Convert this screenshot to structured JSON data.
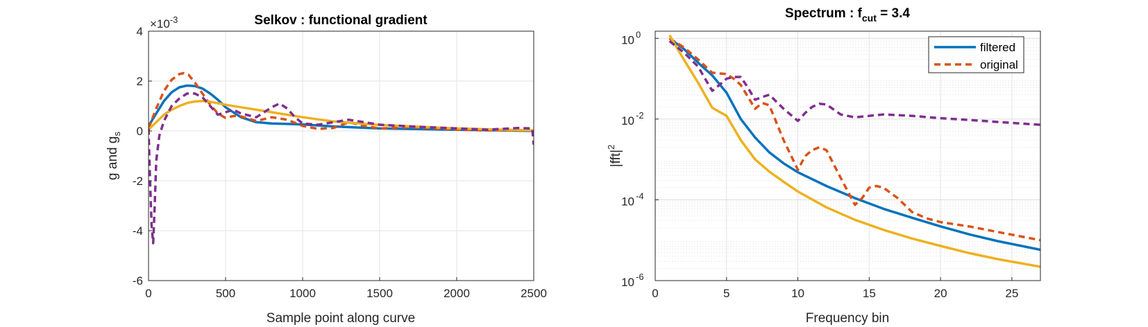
{
  "chart_data": [
    {
      "type": "line",
      "title": "Selkov : functional gradient",
      "xlabel": "Sample point along curve",
      "ylabel": "g and g",
      "ylabel_sub": "s",
      "exponent": {
        "base": "×10",
        "power": "-3"
      },
      "xlim": [
        0,
        2500
      ],
      "ylim": [
        -6,
        4
      ],
      "xticks": [
        0,
        500,
        1000,
        1500,
        2000,
        2500
      ],
      "yticks": [
        -6,
        -4,
        -2,
        0,
        2,
        4
      ],
      "grid": true,
      "series": [
        {
          "color": "#0072BD",
          "dash": "solid",
          "x": [
            0,
            50,
            100,
            150,
            200,
            250,
            300,
            350,
            400,
            450,
            500,
            600,
            700,
            800,
            900,
            1000,
            1200,
            1500,
            2000,
            2500
          ],
          "y": [
            0.2,
            0.7,
            1.2,
            1.55,
            1.75,
            1.82,
            1.8,
            1.7,
            1.5,
            1.25,
            0.95,
            0.55,
            0.35,
            0.3,
            0.28,
            0.26,
            0.18,
            0.1,
            0.05,
            0.0
          ]
        },
        {
          "color": "#D95319",
          "dash": "dashed",
          "x": [
            0,
            50,
            100,
            150,
            200,
            230,
            260,
            300,
            350,
            400,
            450,
            500,
            550,
            600,
            700,
            800,
            900,
            1000,
            1100,
            1200,
            1300,
            1400,
            1500,
            1700,
            2000,
            2200,
            2500
          ],
          "y": [
            0.1,
            0.9,
            1.6,
            2.05,
            2.28,
            2.32,
            2.25,
            1.95,
            1.5,
            1.05,
            0.7,
            0.52,
            0.6,
            0.58,
            0.4,
            0.55,
            0.45,
            0.2,
            0.08,
            0.12,
            0.35,
            0.2,
            0.1,
            0.15,
            0.05,
            0.02,
            0.02
          ]
        },
        {
          "color": "#EDB120",
          "dash": "solid",
          "x": [
            0,
            50,
            100,
            150,
            200,
            250,
            300,
            350,
            400,
            500,
            600,
            700,
            800,
            900,
            1000,
            1200,
            1500,
            2000,
            2500
          ],
          "y": [
            0.05,
            0.35,
            0.65,
            0.85,
            1.0,
            1.12,
            1.18,
            1.2,
            1.17,
            1.05,
            0.95,
            0.85,
            0.75,
            0.65,
            0.55,
            0.38,
            0.24,
            0.1,
            0.02
          ]
        },
        {
          "color": "#7E2F8E",
          "dash": "dashed",
          "x": [
            0,
            10,
            20,
            30,
            40,
            50,
            70,
            100,
            150,
            200,
            250,
            300,
            350,
            400,
            450,
            500,
            550,
            600,
            700,
            800,
            850,
            900,
            950,
            1000,
            1100,
            1200,
            1300,
            1400,
            1500,
            1700,
            2000,
            2200,
            2400,
            2490,
            2500
          ],
          "y": [
            0.1,
            -2.0,
            -3.8,
            -4.5,
            -3.0,
            -1.2,
            -0.2,
            0.4,
            1.0,
            1.3,
            1.5,
            1.5,
            1.35,
            1.0,
            0.65,
            0.75,
            0.85,
            0.7,
            0.55,
            0.95,
            1.1,
            0.9,
            0.55,
            0.3,
            0.25,
            0.35,
            0.45,
            0.35,
            0.25,
            0.18,
            0.1,
            0.05,
            0.12,
            0.1,
            -0.55
          ]
        }
      ]
    },
    {
      "type": "line",
      "title": "Spectrum : f",
      "title_sub": "cut",
      "title_tail": " = 3.4",
      "xlabel": "Frequency bin",
      "ylabel": "|fft|",
      "ylabel_sup": "2",
      "xlim": [
        0,
        27
      ],
      "ylim": [
        1e-06,
        1.5
      ],
      "yscale": "log",
      "xticks": [
        0,
        5,
        10,
        15,
        20,
        25
      ],
      "yticks": [
        {
          "value": 1e-06,
          "base": "10",
          "power": "-6"
        },
        {
          "value": 0.0001,
          "base": "10",
          "power": "-4"
        },
        {
          "value": 0.01,
          "base": "10",
          "power": "-2"
        },
        {
          "value": 1,
          "base": "10",
          "power": "0"
        }
      ],
      "grid": true,
      "legend_position": "top-right",
      "legend": [
        {
          "label": "filtered",
          "color": "#0072BD",
          "dash": "solid"
        },
        {
          "label": "original",
          "color": "#D95319",
          "dash": "dashed"
        }
      ],
      "series": [
        {
          "name": "filtered",
          "color": "#0072BD",
          "dash": "solid",
          "x": [
            1,
            2,
            3,
            4,
            5,
            6,
            7,
            8,
            9,
            10,
            12,
            14,
            16,
            18,
            20,
            22,
            24,
            27
          ],
          "y": [
            1.0,
            0.55,
            0.25,
            0.12,
            0.045,
            0.01,
            0.0035,
            0.0015,
            0.0008,
            0.00048,
            0.00022,
            0.00011,
            6e-05,
            3.6e-05,
            2.2e-05,
            1.4e-05,
            9.5e-06,
            5.8e-06
          ]
        },
        {
          "name": "original",
          "color": "#D95319",
          "dash": "dashed",
          "x": [
            1,
            2,
            3,
            4,
            5,
            5.5,
            6,
            7,
            7.5,
            8,
            9,
            10,
            10.5,
            11,
            11.5,
            12,
            13,
            14,
            14.5,
            15,
            15.5,
            16,
            17,
            18,
            19,
            20,
            22,
            24,
            27
          ],
          "y": [
            1.0,
            0.6,
            0.3,
            0.14,
            0.13,
            0.1,
            0.07,
            0.018,
            0.025,
            0.022,
            0.003,
            0.00055,
            0.0012,
            0.0017,
            0.002,
            0.0017,
            0.00035,
            7.5e-05,
            0.00011,
            0.0002,
            0.00022,
            0.0002,
            0.00011,
            5e-05,
            3.5e-05,
            2.8e-05,
            2.2e-05,
            1.6e-05,
            1e-05
          ]
        },
        {
          "color": "#EDB120",
          "dash": "solid",
          "x": [
            1,
            2,
            3,
            4,
            5,
            6,
            7,
            8,
            9,
            10,
            12,
            14,
            16,
            18,
            20,
            22,
            24,
            27
          ],
          "y": [
            1.2,
            0.3,
            0.08,
            0.019,
            0.012,
            0.003,
            0.001,
            0.0005,
            0.00028,
            0.00016,
            6.5e-05,
            3.2e-05,
            1.8e-05,
            1.1e-05,
            7.2e-06,
            4.8e-06,
            3.4e-06,
            2.2e-06
          ]
        },
        {
          "color": "#7E2F8E",
          "dash": "dashed",
          "x": [
            1,
            2,
            3,
            3.5,
            4,
            4.5,
            5,
            5.5,
            6,
            6.5,
            7,
            7.5,
            8,
            9,
            10,
            10.5,
            11,
            11.5,
            12,
            13,
            14,
            15,
            16,
            18,
            20,
            22,
            24,
            27
          ],
          "y": [
            0.85,
            0.45,
            0.2,
            0.1,
            0.05,
            0.07,
            0.1,
            0.11,
            0.11,
            0.06,
            0.03,
            0.035,
            0.04,
            0.018,
            0.009,
            0.014,
            0.02,
            0.024,
            0.023,
            0.013,
            0.011,
            0.012,
            0.013,
            0.012,
            0.0105,
            0.0095,
            0.0085,
            0.0072
          ]
        }
      ]
    }
  ]
}
